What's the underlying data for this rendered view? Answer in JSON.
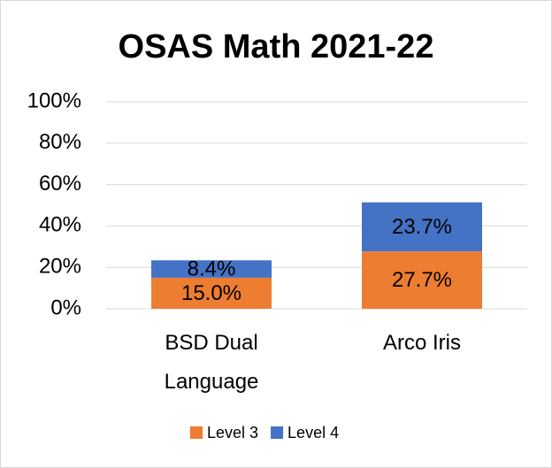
{
  "chart_data": {
    "type": "stacked_bar",
    "title": "OSAS Math 2021-22",
    "categories": [
      "BSD Dual Language",
      "Arco Iris"
    ],
    "series": [
      {
        "name": "Level 3",
        "color": "#ed7d31",
        "values": [
          15.0,
          27.7
        ],
        "value_labels": [
          "15.0%",
          "27.7%"
        ]
      },
      {
        "name": "Level 4",
        "color": "#4472c4",
        "values": [
          8.4,
          23.7
        ],
        "value_labels": [
          "8.4%",
          "23.7%"
        ]
      }
    ],
    "ylim": [
      0,
      100
    ],
    "yticks": [
      {
        "value": 0,
        "label": "0%"
      },
      {
        "value": 20,
        "label": "20%"
      },
      {
        "value": 40,
        "label": "40%"
      },
      {
        "value": 60,
        "label": "60%"
      },
      {
        "value": 80,
        "label": "80%"
      },
      {
        "value": 100,
        "label": "100%"
      }
    ],
    "grid": true,
    "legend": "bottom"
  }
}
